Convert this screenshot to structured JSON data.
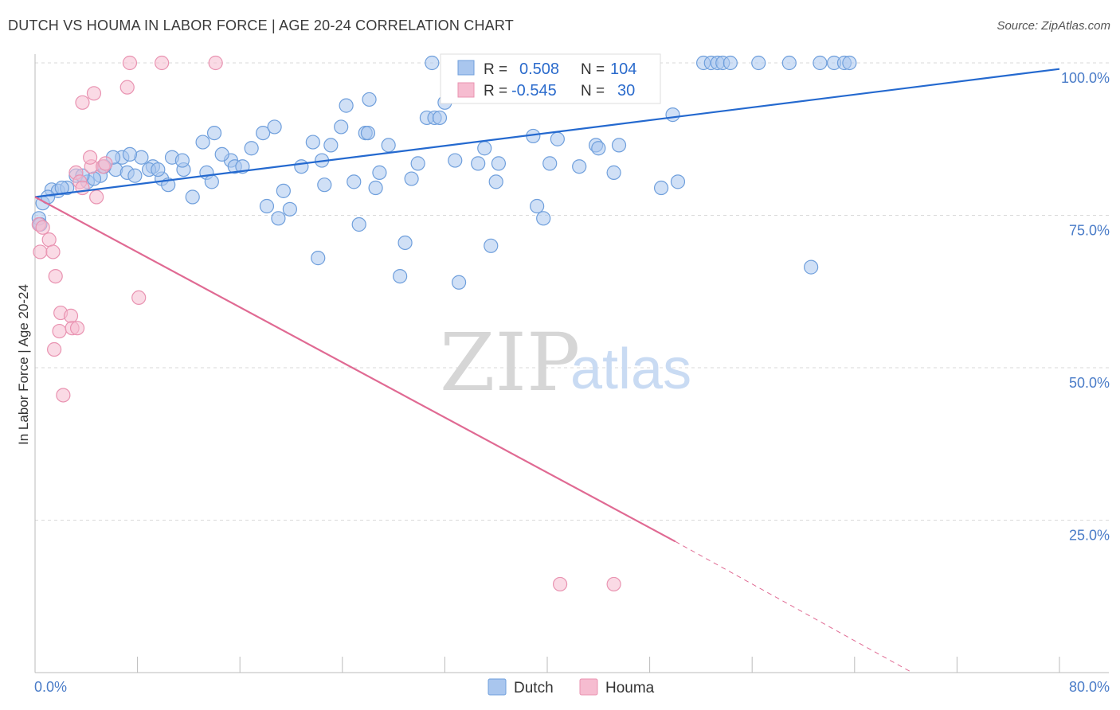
{
  "title": "DUTCH VS HOUMA IN LABOR FORCE | AGE 20-24 CORRELATION CHART",
  "source": "Source: ZipAtlas.com",
  "watermark": {
    "zip": "ZIP",
    "atlas": "atlas"
  },
  "colors": {
    "dutch_fill": "#a9c6ee",
    "dutch_stroke": "#6f9fdc",
    "dutch_line": "#2469cf",
    "houma_fill": "#f6bcd0",
    "houma_stroke": "#e993b1",
    "houma_line": "#e06a93",
    "grid": "#d9d9d9",
    "axis_text": "#4a7cc8"
  },
  "legend_top": {
    "rows": [
      {
        "r_label": "R =",
        "r_value": "0.508",
        "n_label": "N =",
        "n_value": "104"
      },
      {
        "r_label": "R =",
        "r_value": "-0.545",
        "n_label": "N =",
        "n_value": "30"
      }
    ]
  },
  "legend_bottom": {
    "items": [
      "Dutch",
      "Houma"
    ]
  },
  "chart_data": {
    "type": "scatter",
    "ylabel": "In Labor Force | Age 20-24",
    "xlim": [
      0,
      80
    ],
    "ylim": [
      0,
      100
    ],
    "x_tick_labels": [
      "0.0%",
      "80.0%"
    ],
    "y_tick_labels": [
      "100.0%",
      "75.0%",
      "50.0%",
      "25.0%"
    ],
    "y_ticks": [
      100,
      75,
      50,
      25
    ],
    "grid": true,
    "legend_position": "top-center",
    "series": [
      {
        "name": "Dutch",
        "points": [
          [
            0.3,
            74.5
          ],
          [
            0.4,
            73.5
          ],
          [
            0.6,
            77
          ],
          [
            1.3,
            79.2
          ],
          [
            1.8,
            79
          ],
          [
            2.5,
            79.5
          ],
          [
            3.2,
            81.5
          ],
          [
            4.1,
            80.5
          ],
          [
            5.1,
            81.5
          ],
          [
            4.6,
            81
          ],
          [
            6.3,
            82.5
          ],
          [
            6.8,
            84.5
          ],
          [
            7.2,
            82
          ],
          [
            7.8,
            81.5
          ],
          [
            8.3,
            84.5
          ],
          [
            9.2,
            83
          ],
          [
            9.9,
            81
          ],
          [
            10.4,
            80
          ],
          [
            10.7,
            84.5
          ],
          [
            11.6,
            82.5
          ],
          [
            12.3,
            78
          ],
          [
            13.4,
            82
          ],
          [
            13.8,
            80.5
          ],
          [
            13.1,
            87
          ],
          [
            14.0,
            88.5
          ],
          [
            15.3,
            84
          ],
          [
            15.6,
            83
          ],
          [
            16.2,
            83
          ],
          [
            16.9,
            86
          ],
          [
            17.8,
            88.5
          ],
          [
            18.7,
            89.5
          ],
          [
            19.4,
            79
          ],
          [
            19.9,
            76
          ],
          [
            18.1,
            76.5
          ],
          [
            19.0,
            74.5
          ],
          [
            20.8,
            83
          ],
          [
            21.7,
            87
          ],
          [
            22.1,
            68
          ],
          [
            22.6,
            80
          ],
          [
            23.1,
            86.5
          ],
          [
            23.9,
            89.5
          ],
          [
            24.3,
            93
          ],
          [
            24.9,
            80.5
          ],
          [
            25.3,
            73.5
          ],
          [
            25.8,
            88.5
          ],
          [
            26.1,
            94
          ],
          [
            26.6,
            79.5
          ],
          [
            26.9,
            82
          ],
          [
            27.6,
            86.5
          ],
          [
            28.5,
            65
          ],
          [
            28.9,
            70.5
          ],
          [
            29.4,
            81
          ],
          [
            29.9,
            83.5
          ],
          [
            30.6,
            91
          ],
          [
            31.2,
            91
          ],
          [
            31.6,
            91
          ],
          [
            32.0,
            93.5
          ],
          [
            31.0,
            100
          ],
          [
            32.8,
            84
          ],
          [
            33.1,
            64
          ],
          [
            34.6,
            83.5
          ],
          [
            35.1,
            86
          ],
          [
            35.6,
            70
          ],
          [
            36.0,
            80.5
          ],
          [
            36.2,
            83.5
          ],
          [
            37.0,
            100
          ],
          [
            38.9,
            88
          ],
          [
            39.2,
            76.5
          ],
          [
            39.7,
            74.5
          ],
          [
            40.2,
            83.5
          ],
          [
            40.8,
            87.5
          ],
          [
            41.5,
            95
          ],
          [
            42.5,
            83
          ],
          [
            43.8,
            86.5
          ],
          [
            44.0,
            86
          ],
          [
            45.2,
            82
          ],
          [
            45.6,
            86.5
          ],
          [
            47.5,
            100
          ],
          [
            48.9,
            79.5
          ],
          [
            49.8,
            91.5
          ],
          [
            50.2,
            80.5
          ],
          [
            52.2,
            100
          ],
          [
            52.8,
            100
          ],
          [
            53.3,
            100
          ],
          [
            53.7,
            100
          ],
          [
            54.3,
            100
          ],
          [
            56.5,
            100
          ],
          [
            58.9,
            100
          ],
          [
            60.6,
            66.5
          ],
          [
            61.3,
            100
          ],
          [
            62.4,
            100
          ],
          [
            63.2,
            100
          ],
          [
            63.6,
            100
          ],
          [
            26.0,
            88.5
          ],
          [
            22.4,
            84
          ],
          [
            11.5,
            84
          ],
          [
            8.9,
            82.5
          ],
          [
            6.1,
            84.5
          ],
          [
            1.0,
            78
          ],
          [
            2.1,
            79.5
          ],
          [
            3.7,
            81.5
          ],
          [
            5.4,
            83
          ],
          [
            7.4,
            85
          ],
          [
            9.6,
            82.5
          ],
          [
            14.6,
            85
          ]
        ]
      },
      {
        "name": "Houma",
        "points": [
          [
            0.3,
            73.5
          ],
          [
            0.4,
            69
          ],
          [
            0.6,
            73
          ],
          [
            1.1,
            71
          ],
          [
            1.4,
            69
          ],
          [
            1.6,
            65
          ],
          [
            2.0,
            59
          ],
          [
            1.9,
            56
          ],
          [
            2.2,
            45.5
          ],
          [
            2.8,
            58.5
          ],
          [
            2.9,
            56.5
          ],
          [
            3.3,
            56.5
          ],
          [
            1.5,
            53
          ],
          [
            3.2,
            82
          ],
          [
            3.5,
            80.5
          ],
          [
            3.7,
            79.5
          ],
          [
            4.4,
            83
          ],
          [
            4.3,
            84.5
          ],
          [
            4.8,
            78
          ],
          [
            5.3,
            83
          ],
          [
            5.5,
            83.5
          ],
          [
            3.7,
            93.5
          ],
          [
            4.6,
            95
          ],
          [
            7.2,
            96
          ],
          [
            7.4,
            100
          ],
          [
            9.9,
            100
          ],
          [
            14.1,
            100
          ],
          [
            8.1,
            61.5
          ],
          [
            41.0,
            14.5
          ],
          [
            45.2,
            14.5
          ]
        ]
      }
    ],
    "trendlines": [
      {
        "series": "Dutch",
        "x": [
          0,
          80
        ],
        "y": [
          78,
          99
        ]
      },
      {
        "series": "Houma",
        "x": [
          0,
          50
        ],
        "y": [
          78,
          21.5
        ],
        "dashed_extension_to": [
          68.5,
          0
        ]
      }
    ]
  }
}
